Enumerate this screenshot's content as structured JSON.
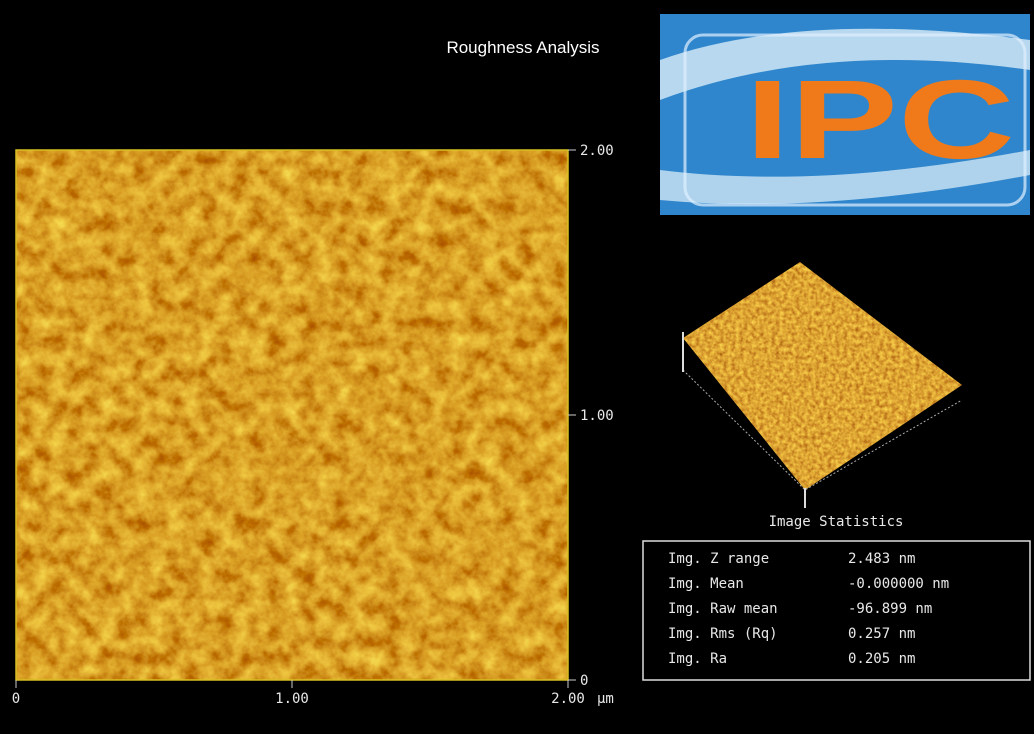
{
  "header": {
    "title": "Roughness Analysis"
  },
  "logo": {
    "text": "IPC"
  },
  "image_axes": {
    "y_labels": [
      "2.00",
      "1.00",
      "0"
    ],
    "x_labels": [
      "0",
      "1.00",
      "2.00"
    ],
    "unit": "µm"
  },
  "statistics": {
    "title": "Image Statistics",
    "rows": [
      [
        "Img. Z range",
        "2.483 nm"
      ],
      [
        "Img. Mean",
        "-0.000000 nm"
      ],
      [
        "Img. Raw mean",
        "-96.899 nm"
      ],
      [
        "Img. Rms (Rq)",
        "0.257 nm"
      ],
      [
        "Img. Ra",
        "0.205 nm"
      ]
    ]
  }
}
